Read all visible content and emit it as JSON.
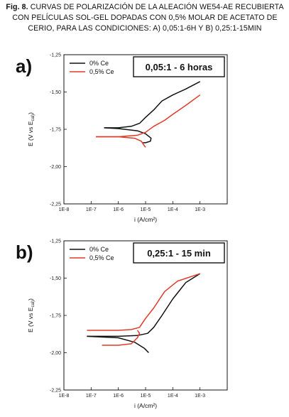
{
  "caption": {
    "prefix": "Fig. 8.",
    "text": "CURVAS DE POLARIZACIÓN DE LA ALEACIÓN WE54-AE RECUBIERTA CON PELÍCULAS SOL-GEL DOPADAS CON 0,5% MOLAR DE ACETATO DE CERIO, PARA LAS CONDICIONES: A) 0,05:1-6H Y B) 0,25:1-15MIN"
  },
  "chart_data": [
    {
      "type": "line",
      "panel_label": "a)",
      "condition": "0,05:1 - 6 horas",
      "xlabel": "i (A/cm²)",
      "ylabel": "E (V vs E_cal)",
      "xscale": "log",
      "xlim": [
        1e-08,
        0.01
      ],
      "ylim": [
        -2.25,
        -1.25
      ],
      "xticks": [
        "1E-8",
        "1E-7",
        "1E-6",
        "1E-5",
        "1E-4",
        "1E-3"
      ],
      "yticks": [
        "-1,25",
        "-1,50",
        "-1,75",
        "-2,00",
        "-2,25"
      ],
      "legend_position": "top-left",
      "series": [
        {
          "name": "0% Ce",
          "color": "#111111",
          "points": [
            [
              3e-07,
              -1.74
            ],
            [
              1e-06,
              -1.74
            ],
            [
              3e-06,
              -1.73
            ],
            [
              6e-06,
              -1.71
            ],
            [
              1e-05,
              -1.67
            ],
            [
              2e-05,
              -1.62
            ],
            [
              4e-05,
              -1.56
            ],
            [
              0.0001,
              -1.52
            ],
            [
              0.0003,
              -1.48
            ],
            [
              0.001,
              -1.43
            ]
          ],
          "cathodic": [
            [
              3e-07,
              -1.74
            ],
            [
              1e-06,
              -1.745
            ],
            [
              5e-06,
              -1.76
            ],
            [
              1e-05,
              -1.78
            ],
            [
              1.6e-05,
              -1.81
            ],
            [
              1.5e-05,
              -1.83
            ],
            [
              1e-05,
              -1.84
            ],
            [
              8e-06,
              -1.84
            ]
          ]
        },
        {
          "name": "0,5% Ce",
          "color": "#e03a2a",
          "points": [
            [
              1.5e-07,
              -1.8
            ],
            [
              1e-06,
              -1.8
            ],
            [
              5e-06,
              -1.79
            ],
            [
              1e-05,
              -1.77
            ],
            [
              2e-05,
              -1.73
            ],
            [
              5e-05,
              -1.69
            ],
            [
              0.0001,
              -1.65
            ],
            [
              0.0003,
              -1.59
            ],
            [
              0.001,
              -1.52
            ]
          ],
          "cathodic": [
            [
              1.5e-07,
              -1.8
            ],
            [
              1e-06,
              -1.8
            ],
            [
              4e-06,
              -1.81
            ],
            [
              7e-06,
              -1.83
            ],
            [
              9e-06,
              -1.86
            ],
            [
              1e-05,
              -1.87
            ]
          ]
        }
      ]
    },
    {
      "type": "line",
      "panel_label": "b)",
      "condition": "0,25:1 - 15 min",
      "xlabel": "i (A/cm²)",
      "ylabel": "E (V vs E_cal)",
      "xscale": "log",
      "xlim": [
        1e-08,
        0.01
      ],
      "ylim": [
        -2.25,
        -1.25
      ],
      "xticks": [
        "1E-8",
        "1E-7",
        "1E-6",
        "1E-5",
        "1E-4",
        "1E-3"
      ],
      "yticks": [
        "-1,25",
        "-1,50",
        "-1,75",
        "-2,00",
        "-2,25"
      ],
      "legend_position": "top-left",
      "series": [
        {
          "name": "0% Ce",
          "color": "#111111",
          "points": [
            [
              7e-08,
              -1.89
            ],
            [
              1e-06,
              -1.89
            ],
            [
              5e-06,
              -1.885
            ],
            [
              1.2e-05,
              -1.87
            ],
            [
              2e-05,
              -1.83
            ],
            [
              4e-05,
              -1.75
            ],
            [
              0.0001,
              -1.64
            ],
            [
              0.0003,
              -1.53
            ],
            [
              0.001,
              -1.47
            ]
          ],
          "cathodic": [
            [
              7e-08,
              -1.89
            ],
            [
              1e-06,
              -1.9
            ],
            [
              4e-06,
              -1.93
            ],
            [
              9e-06,
              -1.97
            ],
            [
              1.3e-05,
              -2.0
            ]
          ]
        },
        {
          "name": "0,5% Ce",
          "color": "#e03a2a",
          "points": [
            [
              7e-08,
              -1.85
            ],
            [
              1e-06,
              -1.85
            ],
            [
              3e-06,
              -1.845
            ],
            [
              6e-06,
              -1.83
            ],
            [
              1e-05,
              -1.77
            ],
            [
              2e-05,
              -1.7
            ],
            [
              5e-05,
              -1.59
            ],
            [
              0.00015,
              -1.52
            ],
            [
              0.001,
              -1.47
            ]
          ],
          "cathodic": [
            [
              2.5e-07,
              -1.95
            ],
            [
              1e-06,
              -1.95
            ],
            [
              3e-06,
              -1.94
            ],
            [
              5e-06,
              -1.9
            ],
            [
              6e-06,
              -1.87
            ],
            [
              5e-06,
              -1.85
            ]
          ]
        }
      ]
    }
  ]
}
